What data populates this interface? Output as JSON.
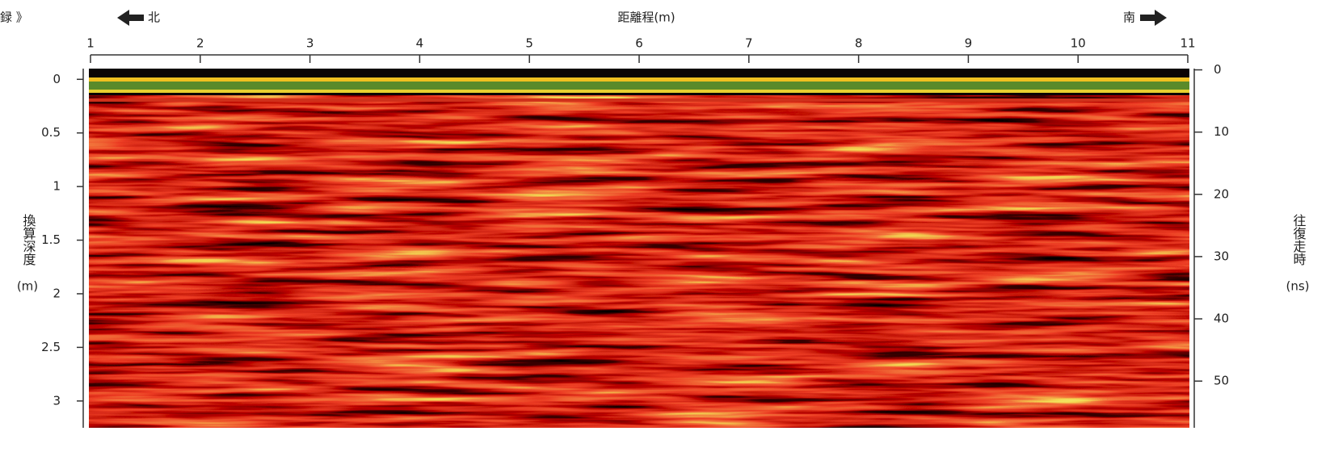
{
  "chart_data": {
    "type": "radargram",
    "corner_text": "録 》",
    "north_label": "北",
    "south_label": "南",
    "xlabel": "距離程(m)",
    "ylabel": "換算深度",
    "ylabel_unit": "(m)",
    "y2label": "往復走時",
    "y2label_unit": "(ns)",
    "xlim": [
      1,
      11
    ],
    "xticks": [
      1,
      2,
      3,
      4,
      5,
      6,
      7,
      8,
      9,
      10,
      11
    ],
    "ylim": [
      -0.1,
      3.25
    ],
    "yticks": [
      0,
      0.5,
      1,
      1.5,
      2,
      2.5,
      3
    ],
    "y2lim": [
      -0.2,
      57.5
    ],
    "y2ticks": [
      0,
      10,
      20,
      30,
      40,
      50
    ]
  }
}
